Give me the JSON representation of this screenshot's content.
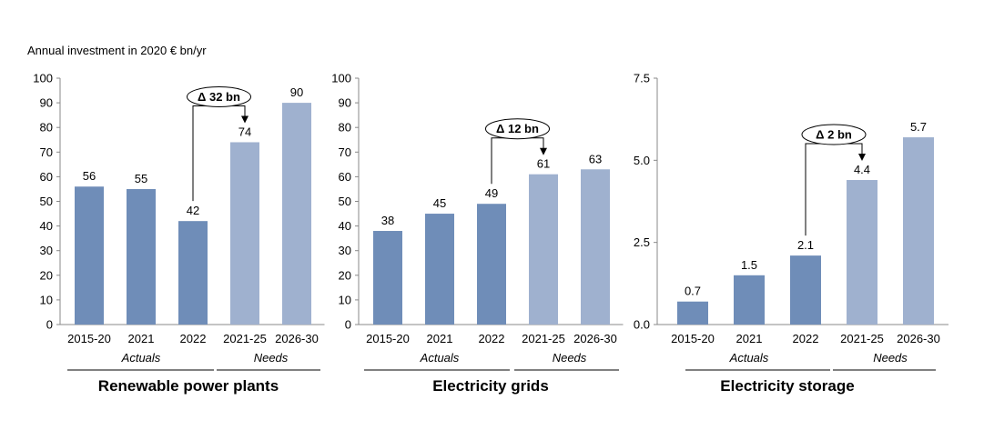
{
  "unit_label": "Annual investment in 2020 € bn/yr",
  "colors": {
    "actual": "#6f8db8",
    "need": "#9fb1cf",
    "axis": "#888888",
    "text": "#000000"
  },
  "chart_data": [
    {
      "type": "bar",
      "title": "Renewable power plants",
      "categories": [
        "2015-20",
        "2021",
        "2022",
        "2021-25",
        "2026-30"
      ],
      "values": [
        56,
        55,
        42,
        74,
        90
      ],
      "value_labels": [
        "56",
        "55",
        "42",
        "74",
        "90"
      ],
      "bar_kinds": [
        "actual",
        "actual",
        "actual",
        "need",
        "need"
      ],
      "ylim": [
        0,
        100
      ],
      "yticks": [
        0,
        10,
        20,
        30,
        40,
        50,
        60,
        70,
        80,
        90,
        100
      ],
      "ytick_labels": [
        "0",
        "10",
        "20",
        "30",
        "40",
        "50",
        "60",
        "70",
        "80",
        "90",
        "100"
      ],
      "groups": [
        {
          "label": "Actuals",
          "from": 0,
          "to": 2
        },
        {
          "label": "Needs",
          "from": 3,
          "to": 4
        }
      ],
      "annotation": {
        "label": "Δ 32 bn",
        "from_index": 2,
        "to_index": 3
      }
    },
    {
      "type": "bar",
      "title": "Electricity grids",
      "categories": [
        "2015-20",
        "2021",
        "2022",
        "2021-25",
        "2026-30"
      ],
      "values": [
        38,
        45,
        49,
        61,
        63
      ],
      "value_labels": [
        "38",
        "45",
        "49",
        "61",
        "63"
      ],
      "bar_kinds": [
        "actual",
        "actual",
        "actual",
        "need",
        "need"
      ],
      "ylim": [
        0,
        100
      ],
      "yticks": [
        0,
        10,
        20,
        30,
        40,
        50,
        60,
        70,
        80,
        90,
        100
      ],
      "ytick_labels": [
        "0",
        "10",
        "20",
        "30",
        "40",
        "50",
        "60",
        "70",
        "80",
        "90",
        "100"
      ],
      "groups": [
        {
          "label": "Actuals",
          "from": 0,
          "to": 2
        },
        {
          "label": "Needs",
          "from": 3,
          "to": 4
        }
      ],
      "annotation": {
        "label": "Δ 12 bn",
        "from_index": 2,
        "to_index": 3
      }
    },
    {
      "type": "bar",
      "title": "Electricity storage",
      "categories": [
        "2015-20",
        "2021",
        "2022",
        "2021-25",
        "2026-30"
      ],
      "values": [
        0.7,
        1.5,
        2.1,
        4.4,
        5.7
      ],
      "value_labels": [
        "0.7",
        "1.5",
        "2.1",
        "4.4",
        "5.7"
      ],
      "bar_kinds": [
        "actual",
        "actual",
        "actual",
        "need",
        "need"
      ],
      "ylim": [
        0,
        7.5
      ],
      "yticks": [
        0,
        2.5,
        5,
        7.5
      ],
      "ytick_labels": [
        "0.0",
        "2.5",
        "5.0",
        "7.5"
      ],
      "groups": [
        {
          "label": "Actuals",
          "from": 0,
          "to": 2
        },
        {
          "label": "Needs",
          "from": 3,
          "to": 4
        }
      ],
      "annotation": {
        "label": "Δ 2 bn",
        "from_index": 2,
        "to_index": 3
      }
    }
  ]
}
